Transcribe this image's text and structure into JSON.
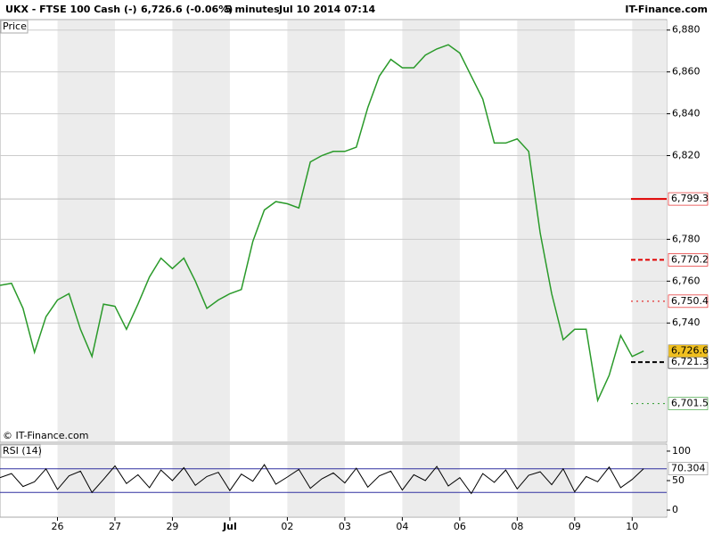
{
  "header": {
    "symbol": "UKX - FTSE 100 Cash (-)",
    "quote": "6,726.6 (-0.06%)",
    "interval": "5 minutes",
    "datetime": "Jul 10 2014 07:14",
    "brand": "IT-Finance.com"
  },
  "chart_data": [
    {
      "type": "line",
      "title": "Price",
      "source": "© IT-Finance.com",
      "color": "#2a9a2a",
      "x": [
        -1.0,
        -0.8,
        -0.6,
        -0.4,
        -0.2,
        0.0,
        0.2,
        0.4,
        0.6,
        0.8,
        1.0,
        1.2,
        1.4,
        1.6,
        1.8,
        2.0,
        2.2,
        2.4,
        2.6,
        2.8,
        3.0,
        3.2,
        3.4,
        3.6,
        3.8,
        4.0,
        4.2,
        4.4,
        4.6,
        4.8,
        5.0,
        5.2,
        5.4,
        5.6,
        5.8,
        6.0,
        6.2,
        6.4,
        6.6,
        6.8,
        7.0,
        7.2,
        7.4,
        7.6,
        7.8,
        8.0,
        8.2,
        8.4,
        8.6,
        8.8,
        9.0,
        9.2,
        9.4,
        9.6,
        9.8,
        10.0,
        10.2
      ],
      "values": [
        6758,
        6759,
        6747,
        6726,
        6743,
        6751,
        6754,
        6737,
        6724,
        6749,
        6748,
        6737,
        6749,
        6762,
        6771,
        6766,
        6771,
        6760,
        6747,
        6751,
        6754,
        6756,
        6779,
        6794,
        6798,
        6797,
        6795,
        6817,
        6820,
        6822,
        6822,
        6824,
        6843,
        6858,
        6866,
        6862,
        6862,
        6868,
        6871,
        6873,
        6869,
        6858,
        6847,
        6826,
        6826,
        6828,
        6822,
        6783,
        6754,
        6732,
        6737,
        6737,
        6703,
        6715,
        6734,
        6724,
        6726.6
      ],
      "xlim": [
        -1.0,
        10.6
      ],
      "ylim": [
        6683,
        6885
      ],
      "yticks": [
        {
          "value": 6740,
          "label": "6,740"
        },
        {
          "value": 6760,
          "label": "6,760"
        },
        {
          "value": 6780,
          "label": "6,780"
        },
        {
          "value": 6820,
          "label": "6,820"
        },
        {
          "value": 6840,
          "label": "6,840"
        },
        {
          "value": 6860,
          "label": "6,860"
        },
        {
          "value": 6880,
          "label": "6,880"
        }
      ],
      "grid": true,
      "levels": [
        {
          "value": 6799.3,
          "label": "6,799.3",
          "color": "#e00000",
          "style": "solid"
        },
        {
          "value": 6770.2,
          "label": "6,770.2",
          "color": "#e00000",
          "style": "dashed"
        },
        {
          "value": 6750.4,
          "label": "6,750.4",
          "color": "#e00000",
          "style": "dotted"
        },
        {
          "value": 6721.3,
          "label": "6,721.3",
          "color": "#000000",
          "style": "dashed"
        },
        {
          "value": 6701.5,
          "label": "6,701.5",
          "color": "#2a9a2a",
          "style": "dotted"
        }
      ],
      "last": {
        "value": 6726.6,
        "label": "6,726.6",
        "color": "#f0c020"
      }
    },
    {
      "type": "line",
      "title": "RSI (14)",
      "color": "#000000",
      "x": [
        -1.0,
        -0.8,
        -0.6,
        -0.4,
        -0.2,
        0.0,
        0.2,
        0.4,
        0.6,
        0.8,
        1.0,
        1.2,
        1.4,
        1.6,
        1.8,
        2.0,
        2.2,
        2.4,
        2.6,
        2.8,
        3.0,
        3.2,
        3.4,
        3.6,
        3.8,
        4.0,
        4.2,
        4.4,
        4.6,
        4.8,
        5.0,
        5.2,
        5.4,
        5.6,
        5.8,
        6.0,
        6.2,
        6.4,
        6.6,
        6.8,
        7.0,
        7.2,
        7.4,
        7.6,
        7.8,
        8.0,
        8.2,
        8.4,
        8.6,
        8.8,
        9.0,
        9.2,
        9.4,
        9.6,
        9.8,
        10.0,
        10.2
      ],
      "values": [
        55,
        62,
        40,
        48,
        70,
        35,
        58,
        66,
        30,
        52,
        75,
        45,
        60,
        38,
        68,
        50,
        72,
        42,
        57,
        64,
        33,
        61,
        49,
        77,
        44,
        56,
        69,
        37,
        53,
        63,
        46,
        71,
        39,
        58,
        66,
        34,
        60,
        50,
        74,
        41,
        55,
        28,
        62,
        47,
        68,
        36,
        59,
        65,
        43,
        70,
        31,
        57,
        48,
        73,
        38,
        52,
        70.304
      ],
      "xlim": [
        -1.0,
        10.6
      ],
      "ylim": [
        -12,
        112
      ],
      "yticks": [
        0,
        50,
        100
      ],
      "levels": [
        70,
        30
      ],
      "level_color": "#3030a0",
      "last": {
        "value": 70.304,
        "label": "70.304"
      },
      "xticks": [
        {
          "value": 0,
          "label": "26"
        },
        {
          "value": 1,
          "label": "27"
        },
        {
          "value": 2,
          "label": "29"
        },
        {
          "value": 3,
          "label": "Jul"
        },
        {
          "value": 4,
          "label": "02"
        },
        {
          "value": 5,
          "label": "03"
        },
        {
          "value": 6,
          "label": "04"
        },
        {
          "value": 7,
          "label": "06"
        },
        {
          "value": 8,
          "label": "08"
        },
        {
          "value": 9,
          "label": "09"
        },
        {
          "value": 10,
          "label": "10"
        }
      ]
    }
  ]
}
